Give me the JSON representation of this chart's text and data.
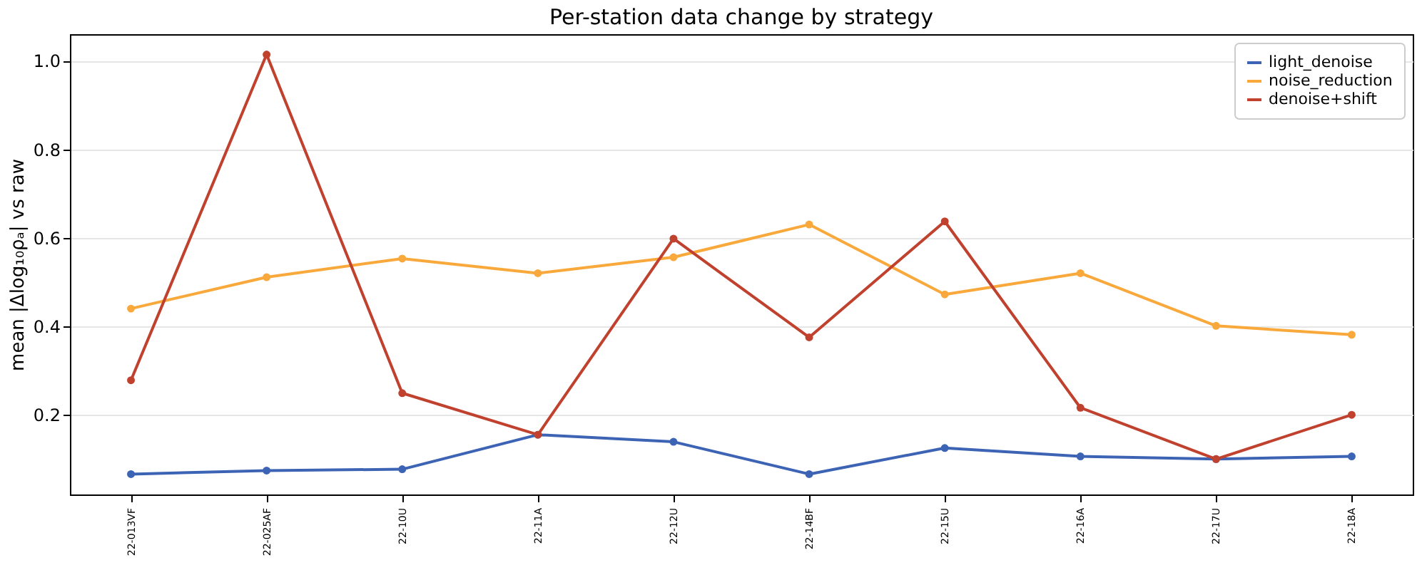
{
  "chart_data": {
    "type": "line",
    "title": "Per-station data change by strategy",
    "ylabel": "mean |Δlog₁₀ρₐ| vs raw",
    "categories": [
      "22-013VF",
      "22-025AF",
      "22-10U",
      "22-11A",
      "22-12U",
      "22-14BF",
      "22-15U",
      "22-16A",
      "22-17U",
      "22-18A"
    ],
    "series": [
      {
        "name": "light_denoise",
        "color": "#3d64b4",
        "values": [
          0.066,
          0.074,
          0.077,
          0.155,
          0.139,
          0.066,
          0.125,
          0.106,
          0.1,
          0.106
        ]
      },
      {
        "name": "noise_reduction",
        "color": "#f9a93b",
        "values": [
          0.44,
          0.511,
          0.553,
          0.52,
          0.556,
          0.63,
          0.472,
          0.52,
          0.401,
          0.381
        ]
      },
      {
        "name": "denoise+shift",
        "color": "#c0422e",
        "values": [
          0.278,
          1.014,
          0.249,
          0.155,
          0.598,
          0.375,
          0.637,
          0.216,
          0.1,
          0.2
        ]
      }
    ],
    "ylim": [
      0.02,
      1.06
    ],
    "yticks": [
      0.2,
      0.4,
      0.6,
      0.8,
      {
        "value": 1.0,
        "label": "1.0"
      }
    ],
    "grid": "y",
    "legend": "top right",
    "marker": "circle",
    "line_style": "solid"
  }
}
